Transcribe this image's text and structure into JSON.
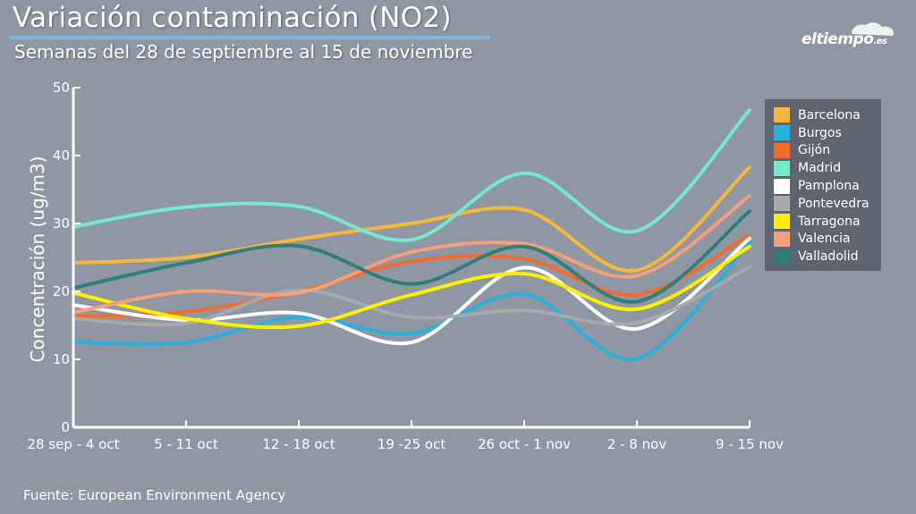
{
  "title": "Variación contaminación (NO2)",
  "subtitle": "Semanas del 28 de septiembre al 15 de noviembre",
  "logo": {
    "text": "eltiempo",
    "domain": ".es",
    "icon": "cloud-icon"
  },
  "source": "Fuente: European Environment Agency",
  "chart_data": {
    "type": "line",
    "title": "Variación contaminación (NO2)",
    "subtitle": "Semanas del 28 de septiembre al 15 de noviembre",
    "ylabel": "Concentración (ug/m3)",
    "xlabel": "",
    "ylim": [
      0,
      50
    ],
    "yticks": [
      0,
      10,
      20,
      30,
      40,
      50
    ],
    "grid": false,
    "legend_position": "right",
    "categories": [
      "28 sep - 4 oct",
      "5 - 11 oct",
      "12 - 18 oct",
      "19 -25 oct",
      "26 oct - 1 nov",
      "2 - 8 nov",
      "9 - 15 nov"
    ],
    "series": [
      {
        "name": "Barcelona",
        "color": "#f6b73c",
        "values": [
          24.2,
          25.0,
          27.7,
          30.0,
          32.0,
          23.1,
          38.3
        ]
      },
      {
        "name": "Burgos",
        "color": "#29b0dd",
        "values": [
          12.6,
          12.5,
          16.2,
          13.8,
          19.6,
          10.1,
          27.2
        ]
      },
      {
        "name": "Gijón",
        "color": "#f26d2c",
        "values": [
          16.3,
          17.0,
          20.0,
          24.4,
          24.8,
          19.5,
          28.3
        ]
      },
      {
        "name": "Madrid",
        "color": "#78e8cc",
        "values": [
          29.5,
          32.4,
          32.5,
          27.6,
          37.4,
          28.9,
          46.7
        ]
      },
      {
        "name": "Pamplona",
        "color": "#ffffff",
        "values": [
          18.0,
          15.8,
          16.8,
          12.5,
          23.5,
          14.5,
          27.8
        ]
      },
      {
        "name": "Pontevedra",
        "color": "#a8a9ac",
        "values": [
          16.0,
          15.3,
          20.2,
          16.2,
          17.2,
          15.4,
          23.6
        ]
      },
      {
        "name": "Tarragona",
        "color": "#fff000",
        "values": [
          19.8,
          16.0,
          14.9,
          19.5,
          22.6,
          17.4,
          26.6
        ]
      },
      {
        "name": "Valencia",
        "color": "#f5a07a",
        "values": [
          16.9,
          20.0,
          19.8,
          25.8,
          27.0,
          22.3,
          34.1
        ]
      },
      {
        "name": "Valladolid",
        "color": "#2f7e77",
        "values": [
          20.5,
          24.2,
          26.7,
          21.1,
          26.6,
          18.5,
          31.8
        ]
      }
    ]
  }
}
